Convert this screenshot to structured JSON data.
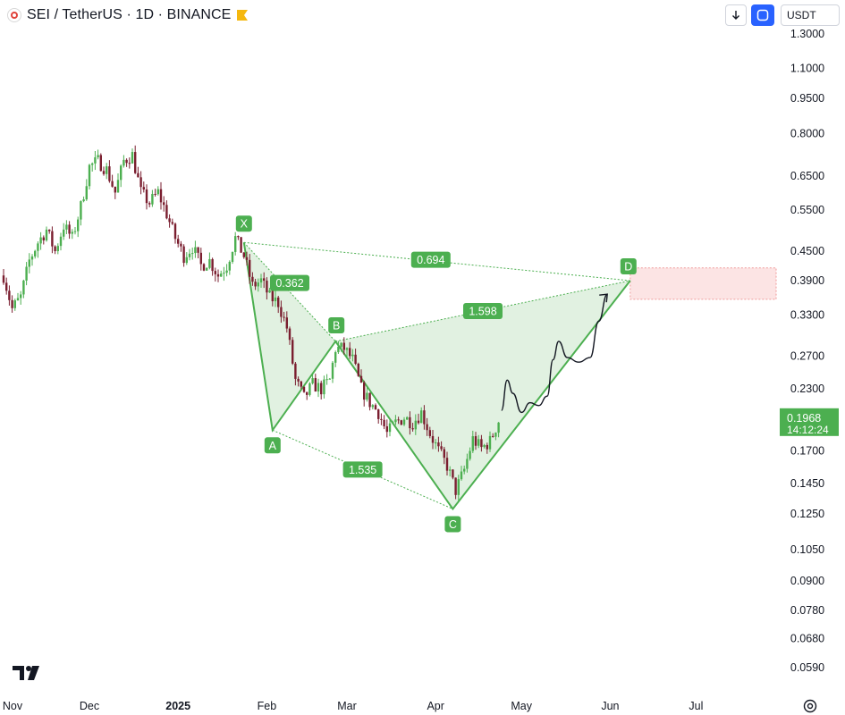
{
  "header": {
    "title": "SEI / TetherUS · 1D · BINANCE",
    "currency_label": "USDT",
    "logo_icon": "sei-coin-icon",
    "flag_icon": "flag-icon",
    "flag_color": "#f5b80f"
  },
  "colors": {
    "up": "#4caf50",
    "down": "#7a1e2f",
    "pattern_line": "#4caf50",
    "pattern_fill": "#c8e6c9",
    "target_zone": "#fce4e4",
    "target_border": "#ef9a9a",
    "price_badge": "#4caf50",
    "accent_button": "#2962ff"
  },
  "chart_data": {
    "type": "candlestick",
    "y_scale": "log",
    "ylim": [
      0.053,
      1.36
    ],
    "y_ticks": [
      "1.3000",
      "1.1000",
      "0.9500",
      "0.8000",
      "0.6500",
      "0.5500",
      "0.4500",
      "0.3900",
      "0.3300",
      "0.2700",
      "0.2300",
      "0.1700",
      "0.1450",
      "0.1250",
      "0.1050",
      "0.0900",
      "0.0780",
      "0.0680",
      "0.0590"
    ],
    "x_ticks": [
      {
        "label": "Nov",
        "date": "2024-11-01"
      },
      {
        "label": "Dec",
        "date": "2024-12-01"
      },
      {
        "label": "2025",
        "date": "2025-01-01",
        "bold": true
      },
      {
        "label": "Feb",
        "date": "2025-02-01"
      },
      {
        "label": "Mar",
        "date": "2025-03-01"
      },
      {
        "label": "Apr",
        "date": "2025-04-01"
      },
      {
        "label": "May",
        "date": "2025-05-01"
      },
      {
        "label": "Jun",
        "date": "2025-06-01"
      },
      {
        "label": "Jul",
        "date": "2025-07-01"
      }
    ],
    "last_price": {
      "value": "0.1968",
      "countdown": "14:12:24"
    },
    "close_path": [
      [
        "2024-11-01",
        0.4
      ],
      [
        "2024-11-04",
        0.34
      ],
      [
        "2024-11-07",
        0.36
      ],
      [
        "2024-11-10",
        0.43
      ],
      [
        "2024-11-13",
        0.47
      ],
      [
        "2024-11-16",
        0.5
      ],
      [
        "2024-11-19",
        0.45
      ],
      [
        "2024-11-22",
        0.51
      ],
      [
        "2024-11-25",
        0.48
      ],
      [
        "2024-11-28",
        0.56
      ],
      [
        "2024-12-01",
        0.68
      ],
      [
        "2024-12-04",
        0.7
      ],
      [
        "2024-12-07",
        0.67
      ],
      [
        "2024-12-10",
        0.6
      ],
      [
        "2024-12-13",
        0.7
      ],
      [
        "2024-12-16",
        0.72
      ],
      [
        "2024-12-19",
        0.6
      ],
      [
        "2024-12-22",
        0.57
      ],
      [
        "2024-12-25",
        0.6
      ],
      [
        "2024-12-28",
        0.54
      ],
      [
        "2024-12-31",
        0.48
      ],
      [
        "2025-01-03",
        0.44
      ],
      [
        "2025-01-06",
        0.46
      ],
      [
        "2025-01-09",
        0.42
      ],
      [
        "2025-01-12",
        0.43
      ],
      [
        "2025-01-15",
        0.4
      ],
      [
        "2025-01-18",
        0.42
      ],
      [
        "2025-01-21",
        0.48
      ],
      [
        "2025-01-24",
        0.44
      ],
      [
        "2025-01-27",
        0.38
      ],
      [
        "2025-01-30",
        0.39
      ],
      [
        "2025-02-02",
        0.36
      ],
      [
        "2025-02-05",
        0.35
      ],
      [
        "2025-02-08",
        0.31
      ],
      [
        "2025-02-11",
        0.24
      ],
      [
        "2025-02-14",
        0.22
      ],
      [
        "2025-02-17",
        0.235
      ],
      [
        "2025-02-20",
        0.23
      ],
      [
        "2025-02-23",
        0.24
      ],
      [
        "2025-02-25",
        0.28
      ],
      [
        "2025-02-28",
        0.28
      ],
      [
        "2025-03-03",
        0.265
      ],
      [
        "2025-03-06",
        0.23
      ],
      [
        "2025-03-09",
        0.215
      ],
      [
        "2025-03-12",
        0.205
      ],
      [
        "2025-03-15",
        0.185
      ],
      [
        "2025-03-18",
        0.195
      ],
      [
        "2025-03-21",
        0.2
      ],
      [
        "2025-03-24",
        0.195
      ],
      [
        "2025-03-27",
        0.205
      ],
      [
        "2025-03-30",
        0.185
      ],
      [
        "2025-04-02",
        0.17
      ],
      [
        "2025-04-05",
        0.158
      ],
      [
        "2025-04-08",
        0.14
      ],
      [
        "2025-04-11",
        0.155
      ],
      [
        "2025-04-14",
        0.18
      ],
      [
        "2025-04-17",
        0.172
      ],
      [
        "2025-04-20",
        0.178
      ],
      [
        "2025-04-23",
        0.1968
      ]
    ],
    "harmonic_pattern": {
      "points": [
        {
          "label": "X",
          "date": "2025-01-24",
          "price": 0.47
        },
        {
          "label": "A",
          "date": "2025-02-03",
          "price": 0.188
        },
        {
          "label": "B",
          "date": "2025-02-25",
          "price": 0.29
        },
        {
          "label": "C",
          "date": "2025-04-07",
          "price": 0.128
        },
        {
          "label": "D",
          "date": "2025-06-08",
          "price": 0.39
        }
      ],
      "ratios": [
        {
          "value": "0.362",
          "from": "X",
          "to": "B"
        },
        {
          "value": "1.535",
          "from": "A",
          "to": "C"
        },
        {
          "value": "1.598",
          "from": "B",
          "to": "D"
        },
        {
          "value": "0.694",
          "from": "X",
          "to": "D"
        }
      ],
      "target_zone": {
        "price_high": 0.415,
        "price_low": 0.356,
        "date_start": "2025-06-08"
      }
    },
    "projection_path": [
      [
        "2025-04-24",
        0.207
      ],
      [
        "2025-04-26",
        0.24
      ],
      [
        "2025-04-28",
        0.225
      ],
      [
        "2025-05-01",
        0.205
      ],
      [
        "2025-05-04",
        0.215
      ],
      [
        "2025-05-07",
        0.212
      ],
      [
        "2025-05-10",
        0.222
      ],
      [
        "2025-05-12",
        0.265
      ],
      [
        "2025-05-14",
        0.29
      ],
      [
        "2025-05-17",
        0.268
      ],
      [
        "2025-05-21",
        0.262
      ],
      [
        "2025-05-25",
        0.268
      ],
      [
        "2025-05-28",
        0.32
      ],
      [
        "2025-05-31",
        0.365
      ]
    ]
  }
}
